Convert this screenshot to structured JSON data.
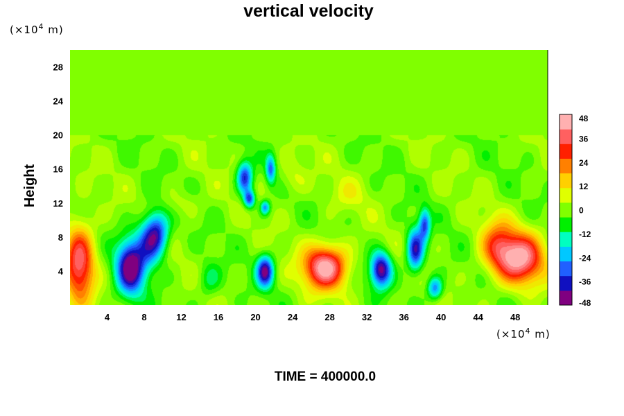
{
  "chart_data": {
    "type": "heatmap",
    "title": "vertical velocity",
    "ylabel": "Height",
    "x_unit": "(×10",
    "x_unit_exp": "4",
    "x_unit_tail": " m)",
    "y_unit": "(×10",
    "y_unit_exp": "4",
    "y_unit_tail": " m)",
    "time_label": "TIME = 400000.0",
    "xlim": [
      0,
      51.5
    ],
    "ylim": [
      0,
      30
    ],
    "x_ticks": [
      "4",
      "8",
      "12",
      "16",
      "20",
      "24",
      "28",
      "32",
      "36",
      "40",
      "44",
      "48"
    ],
    "x_tick_values": [
      4,
      8,
      12,
      16,
      20,
      24,
      28,
      32,
      36,
      40,
      44,
      48
    ],
    "y_ticks": [
      "4",
      "8",
      "12",
      "16",
      "20",
      "24",
      "28"
    ],
    "y_tick_values": [
      4,
      8,
      12,
      16,
      20,
      24,
      28
    ],
    "colorbar": {
      "min": -48,
      "max": 48,
      "ticks": [
        "48",
        "36",
        "24",
        "12",
        "0",
        "-12",
        "-24",
        "-36",
        "-48"
      ],
      "tick_values": [
        48,
        36,
        24,
        12,
        0,
        -12,
        -24,
        -36,
        -48
      ],
      "colors": [
        "#800080",
        "#1010c0",
        "#2060ff",
        "#00c8ff",
        "#00ffc0",
        "#00f000",
        "#80ff00",
        "#e0ff00",
        "#ffd000",
        "#ff8000",
        "#ff2000",
        "#ff6060",
        "#ffb0b0"
      ]
    },
    "features": [
      {
        "x": 1.0,
        "y": 5.0,
        "sx": 1.6,
        "sy": 4.5,
        "value": 40
      },
      {
        "x": 6.5,
        "y": 4.5,
        "sx": 1.5,
        "sy": 3.2,
        "value": -52
      },
      {
        "x": 8.5,
        "y": 7.5,
        "sx": 1.3,
        "sy": 3.0,
        "value": -30
      },
      {
        "x": 9.5,
        "y": 8.5,
        "sx": 1.2,
        "sy": 2.5,
        "value": -28
      },
      {
        "x": 15.0,
        "y": 3.0,
        "sx": 1.2,
        "sy": 2.0,
        "value": -12
      },
      {
        "x": 18.8,
        "y": 15.0,
        "sx": 0.8,
        "sy": 1.8,
        "value": -38
      },
      {
        "x": 19.3,
        "y": 12.5,
        "sx": 0.6,
        "sy": 1.0,
        "value": -36
      },
      {
        "x": 21.6,
        "y": 16.0,
        "sx": 0.5,
        "sy": 1.6,
        "value": -30
      },
      {
        "x": 21.0,
        "y": 11.5,
        "sx": 0.5,
        "sy": 0.8,
        "value": -28
      },
      {
        "x": 21.0,
        "y": 4.0,
        "sx": 0.9,
        "sy": 1.8,
        "value": -46
      },
      {
        "x": 27.5,
        "y": 4.5,
        "sx": 2.3,
        "sy": 2.5,
        "value": 50
      },
      {
        "x": 33.5,
        "y": 4.2,
        "sx": 1.1,
        "sy": 2.0,
        "value": -48
      },
      {
        "x": 37.2,
        "y": 6.5,
        "sx": 0.9,
        "sy": 2.5,
        "value": -42
      },
      {
        "x": 38.2,
        "y": 9.5,
        "sx": 0.6,
        "sy": 1.8,
        "value": -32
      },
      {
        "x": 39.3,
        "y": 2.0,
        "sx": 0.8,
        "sy": 1.3,
        "value": -30
      },
      {
        "x": 48.5,
        "y": 5.5,
        "sx": 2.5,
        "sy": 3.0,
        "value": 46
      },
      {
        "x": 46.0,
        "y": 7.0,
        "sx": 1.8,
        "sy": 3.0,
        "value": 24
      },
      {
        "x": 24.0,
        "y": 15.0,
        "sx": 1.5,
        "sy": 2.0,
        "value": 8
      },
      {
        "x": 30.0,
        "y": 13.0,
        "sx": 2.0,
        "sy": 2.0,
        "value": 6
      },
      {
        "x": 12.0,
        "y": 12.0,
        "sx": 2.0,
        "sy": 1.5,
        "value": 6
      }
    ]
  }
}
